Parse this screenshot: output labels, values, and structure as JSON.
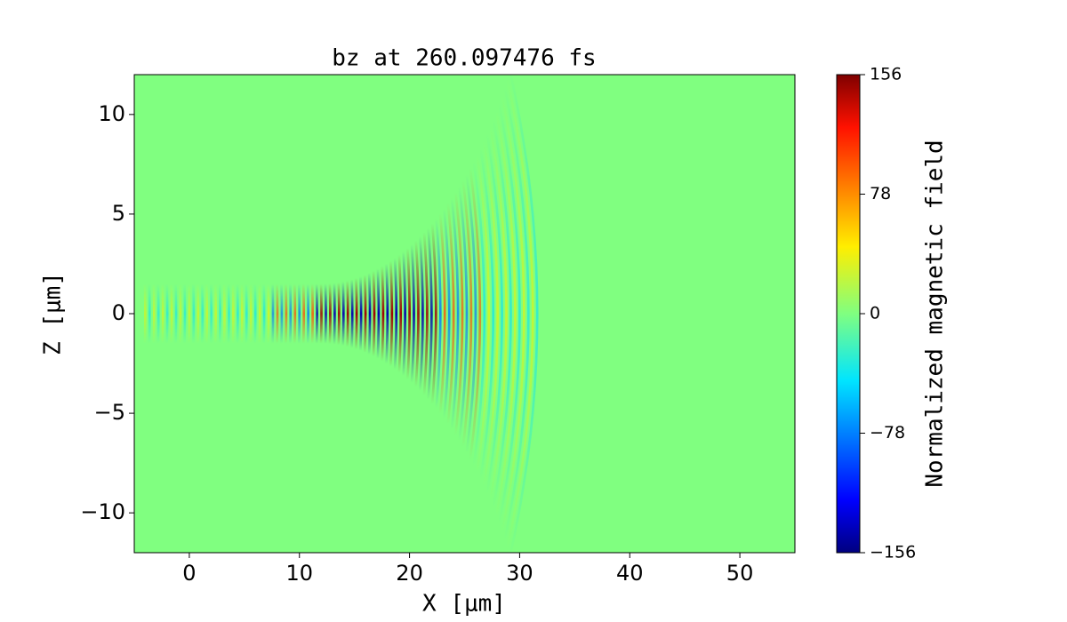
{
  "chart_data": {
    "type": "heatmap",
    "title": "bz at 260.097476 fs",
    "x_label": "X [μm]",
    "y_label": "Z [μm]",
    "colorbar_label": "Normalized magnetic field",
    "colormap": "jet",
    "xlim": [
      -5,
      55
    ],
    "ylim": [
      -12,
      12
    ],
    "xticks": [
      0,
      10,
      20,
      30,
      40,
      50
    ],
    "yticks": [
      {
        "value": -10,
        "label": "−10"
      },
      {
        "value": -5,
        "label": "−5"
      },
      0,
      5,
      10
    ],
    "clim": [
      -156,
      156
    ],
    "cticks": [
      {
        "value": -156,
        "label": "−156"
      },
      {
        "value": -78,
        "label": "−78"
      },
      0,
      78,
      156
    ]
  }
}
